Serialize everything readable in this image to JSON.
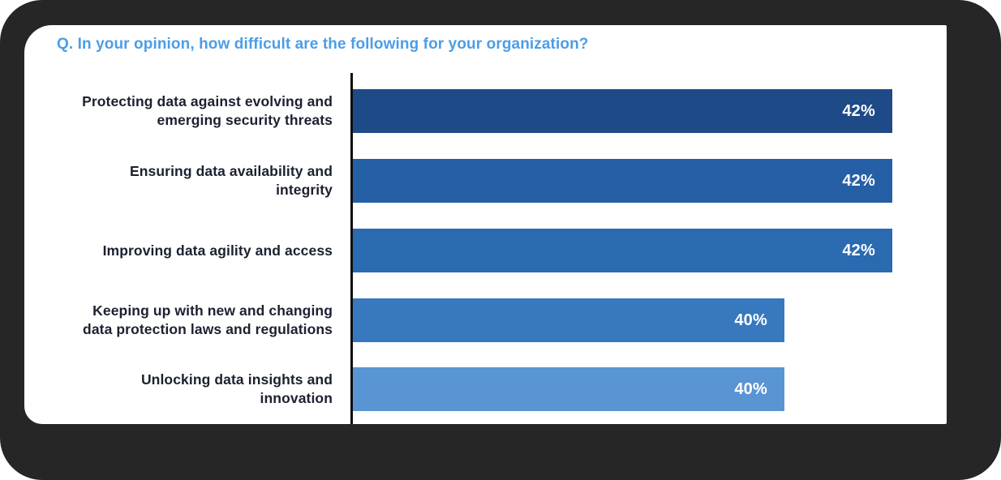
{
  "title": "Q. In your opinion, how difficult are the following for your organization?",
  "colors": {
    "title": "#4d9de5",
    "frame_background": "#262626",
    "panel_background": "#ffffff",
    "axis": "#0d0d0d",
    "category_label": "#1c2130",
    "value_label": "#ffffff"
  },
  "chart_data": {
    "type": "bar",
    "orientation": "horizontal",
    "title": "Q. In your opinion, how difficult are the following for your organization?",
    "categories": [
      "Protecting data against evolving and emerging security threats",
      "Ensuring data availability and integrity",
      "Improving data agility and access",
      "Keeping up with new and changing data protection laws and regulations",
      "Unlocking data insights and innovation"
    ],
    "label_lines": [
      [
        "Protecting data against evolving and",
        "emerging security threats"
      ],
      [
        "Ensuring data availability and",
        "integrity"
      ],
      [
        "Improving data agility and access"
      ],
      [
        "Keeping up with new and changing",
        "data protection laws and regulations"
      ],
      [
        "Unlocking data insights and",
        "innovation"
      ]
    ],
    "values": [
      42,
      42,
      42,
      40,
      40
    ],
    "value_labels": [
      "42%",
      "42%",
      "42%",
      "40%",
      "40%"
    ],
    "bar_colors": [
      "#1e4a87",
      "#255fa6",
      "#2a6ab0",
      "#3778bf",
      "#5895d2"
    ],
    "xlim": [
      32,
      42.6
    ],
    "xlabel": "",
    "ylabel": "",
    "grid": false,
    "legend": false
  }
}
